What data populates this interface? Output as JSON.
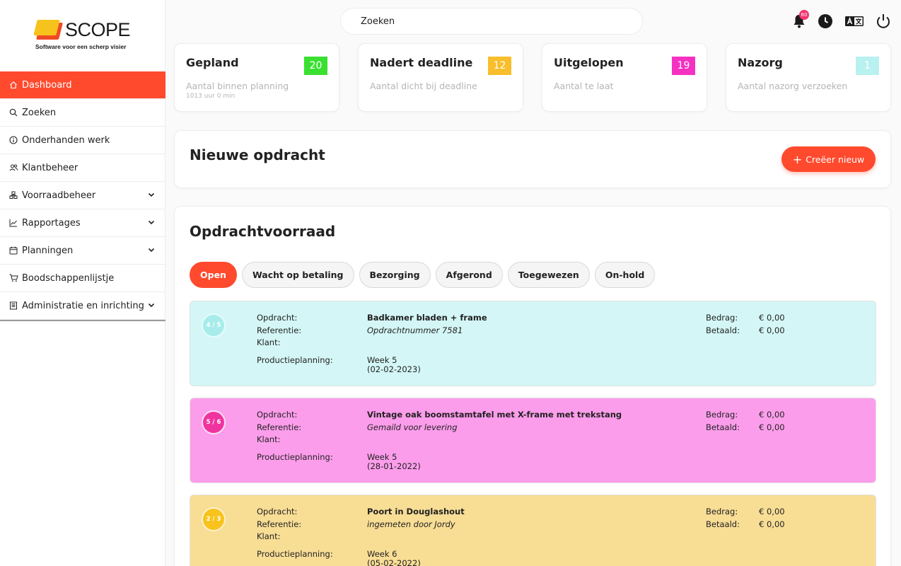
{
  "brand": {
    "name": "SCOPE",
    "tagline": "Software voor een scherp visier"
  },
  "sidebar": {
    "items": [
      {
        "label": "Dashboard",
        "icon": "home-icon"
      },
      {
        "label": "Zoeken",
        "icon": "search-icon"
      },
      {
        "label": "Onderhanden werk",
        "icon": "info-icon"
      },
      {
        "label": "Klantbeheer",
        "icon": "users-icon"
      },
      {
        "label": "Voorraadbeheer",
        "icon": "boxes-icon"
      },
      {
        "label": "Rapportages",
        "icon": "chart-icon"
      },
      {
        "label": "Planningen",
        "icon": "calendar-icon"
      },
      {
        "label": "Boodschappenlijstje",
        "icon": "cart-icon"
      },
      {
        "label": "Administratie en inrichting",
        "icon": "book-icon"
      }
    ]
  },
  "topbar": {
    "search_placeholder": "Zoeken",
    "notification_count": "60"
  },
  "stats": [
    {
      "title": "Gepland",
      "value": "20",
      "subtitle": "Aantal binnen planning",
      "detail": "1013 uur 0 min",
      "color": "#3ae031"
    },
    {
      "title": "Nadert deadline",
      "value": "12",
      "subtitle": "Aantal dicht bij deadline",
      "color": "#f8be2c"
    },
    {
      "title": "Uitgelopen",
      "value": "19",
      "subtitle": "Aantal te laat",
      "color": "#f531c2"
    },
    {
      "title": "Nazorg",
      "value": "1",
      "subtitle": "Aantal nazorg verzoeken",
      "color": "#b8f1ef"
    }
  ],
  "new_order": {
    "title": "Nieuwe opdracht",
    "button": "Creëer nieuw"
  },
  "orders": {
    "title": "Opdrachtvoorraad",
    "tabs": [
      "Open",
      "Wacht op betaling",
      "Bezorging",
      "Afgerond",
      "Toegewezen",
      "On-hold"
    ],
    "labels": {
      "opdracht": "Opdracht:",
      "referentie": "Referentie:",
      "klant": "Klant:",
      "productieplanning": "Productieplanning:",
      "bedrag": "Bedrag:",
      "betaald": "Betaald:"
    },
    "items": [
      {
        "progress": "4 / 5",
        "progress_fraction": 0.8,
        "name": "Badkamer bladen + frame",
        "reference": "Opdrachtnummer 7581",
        "week": "Week 5",
        "date": "(02-02-2023)",
        "amount": "€ 0,00",
        "paid": "€ 0,00",
        "color": "#d4f6f6",
        "ring": "#a7ecea"
      },
      {
        "progress": "5 / 6",
        "progress_fraction": 0.83,
        "name": "Vintage oak boomstamtafel met X-frame met trekstang",
        "reference": "Gemaild voor levering",
        "week": "Week 5",
        "date": "(28-01-2022)",
        "amount": "€ 0,00",
        "paid": "€ 0,00",
        "color": "#fc9deb",
        "ring": "#f0349f"
      },
      {
        "progress": "2 / 3",
        "progress_fraction": 0.67,
        "name": "Poort in Douglashout",
        "reference": "ingemeten door Jordy",
        "week": "Week 6",
        "date": "(05-02-2022)",
        "amount": "€ 0,00",
        "paid": "€ 0,00",
        "color": "#f8dd95",
        "ring": "#f7c31c"
      }
    ]
  }
}
